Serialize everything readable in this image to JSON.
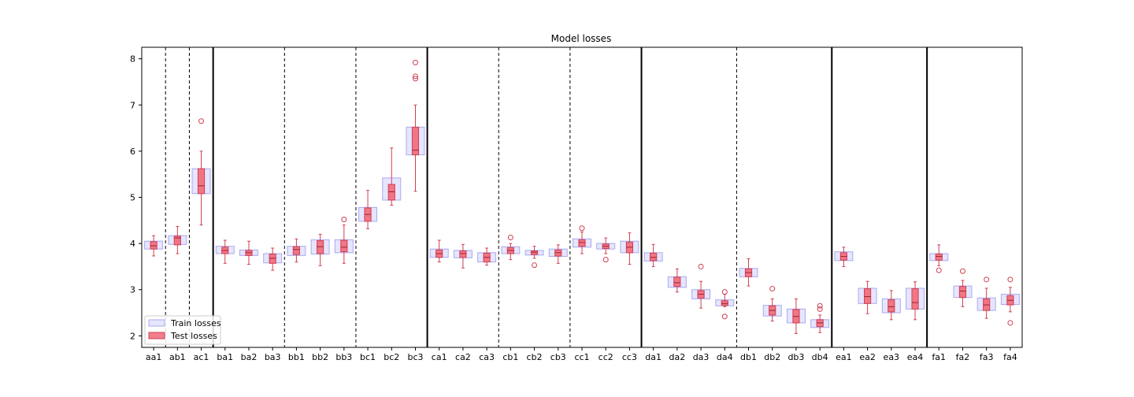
{
  "chart_data": {
    "type": "box",
    "title": "Model losses",
    "xlabel": "",
    "ylabel": "",
    "ylim": [
      1.75,
      8.25
    ],
    "yticks": [
      2,
      3,
      4,
      5,
      6,
      7,
      8
    ],
    "grid": false,
    "legend_position": "lower-left",
    "categories": [
      "aa1",
      "ab1",
      "ac1",
      "ba1",
      "ba2",
      "ba3",
      "bb1",
      "bb2",
      "bb3",
      "bc1",
      "bc2",
      "bc3",
      "ca1",
      "ca2",
      "ca3",
      "cb1",
      "cb2",
      "cb3",
      "cc1",
      "cc2",
      "cc3",
      "da1",
      "da2",
      "da3",
      "da4",
      "db1",
      "db2",
      "db3",
      "db4",
      "ea1",
      "ea2",
      "ea3",
      "ea4",
      "fa1",
      "fa2",
      "fa3",
      "fa4"
    ],
    "separators_solid_after": [
      "ac1",
      "bc3",
      "cc3",
      "db4",
      "ea4"
    ],
    "separators_dashed_after": [
      "aa1",
      "ab1",
      "ba3",
      "bb3",
      "ca3",
      "cb3",
      "da4"
    ],
    "series": [
      {
        "name": "Train losses",
        "color": "#ccccff",
        "edge_color": "#aaaaee",
        "boxes": [
          {
            "q1": 3.88,
            "q3": 4.05
          },
          {
            "q1": 3.98,
            "q3": 4.17
          },
          {
            "q1": 5.08,
            "q3": 5.62
          },
          {
            "q1": 3.78,
            "q3": 3.94
          },
          {
            "q1": 3.74,
            "q3": 3.86
          },
          {
            "q1": 3.58,
            "q3": 3.78
          },
          {
            "q1": 3.74,
            "q3": 3.94
          },
          {
            "q1": 3.77,
            "q3": 4.08
          },
          {
            "q1": 3.8,
            "q3": 4.08
          },
          {
            "q1": 4.48,
            "q3": 4.78
          },
          {
            "q1": 4.94,
            "q3": 5.42
          },
          {
            "q1": 5.92,
            "q3": 6.52
          },
          {
            "q1": 3.7,
            "q3": 3.88
          },
          {
            "q1": 3.69,
            "q3": 3.85
          },
          {
            "q1": 3.6,
            "q3": 3.8
          },
          {
            "q1": 3.78,
            "q3": 3.93
          },
          {
            "q1": 3.75,
            "q3": 3.85
          },
          {
            "q1": 3.72,
            "q3": 3.88
          },
          {
            "q1": 3.92,
            "q3": 4.1
          },
          {
            "q1": 3.88,
            "q3": 4.0
          },
          {
            "q1": 3.8,
            "q3": 4.05
          },
          {
            "q1": 3.62,
            "q3": 3.8
          },
          {
            "q1": 3.05,
            "q3": 3.28
          },
          {
            "q1": 2.8,
            "q3": 3.0
          },
          {
            "q1": 2.65,
            "q3": 2.78
          },
          {
            "q1": 3.28,
            "q3": 3.46
          },
          {
            "q1": 2.43,
            "q3": 2.66
          },
          {
            "q1": 2.28,
            "q3": 2.58
          },
          {
            "q1": 2.18,
            "q3": 2.35
          },
          {
            "q1": 3.63,
            "q3": 3.82
          },
          {
            "q1": 2.7,
            "q3": 3.03
          },
          {
            "q1": 2.5,
            "q3": 2.8
          },
          {
            "q1": 2.58,
            "q3": 3.03
          },
          {
            "q1": 3.63,
            "q3": 3.78
          },
          {
            "q1": 2.83,
            "q3": 3.08
          },
          {
            "q1": 2.55,
            "q3": 2.82
          },
          {
            "q1": 2.68,
            "q3": 2.9
          }
        ]
      },
      {
        "name": "Test losses",
        "color": "#f07080",
        "edge_color": "#d04050",
        "boxes": [
          {
            "whislo": 3.73,
            "q1": 3.88,
            "med": 3.95,
            "q3": 4.04,
            "whishi": 4.17,
            "fliers": []
          },
          {
            "whislo": 3.78,
            "q1": 3.97,
            "med": 4.12,
            "q3": 4.16,
            "whishi": 4.37,
            "fliers": []
          },
          {
            "whislo": 4.4,
            "q1": 5.08,
            "med": 5.25,
            "q3": 5.62,
            "whishi": 6.0,
            "fliers": [
              6.65
            ]
          },
          {
            "whislo": 3.57,
            "q1": 3.78,
            "med": 3.85,
            "q3": 3.92,
            "whishi": 4.07,
            "fliers": []
          },
          {
            "whislo": 3.55,
            "q1": 3.74,
            "med": 3.8,
            "q3": 3.85,
            "whishi": 4.05,
            "fliers": []
          },
          {
            "whislo": 3.42,
            "q1": 3.57,
            "med": 3.68,
            "q3": 3.77,
            "whishi": 3.9,
            "fliers": []
          },
          {
            "whislo": 3.6,
            "q1": 3.76,
            "med": 3.87,
            "q3": 3.93,
            "whishi": 4.1,
            "fliers": []
          },
          {
            "whislo": 3.52,
            "q1": 3.78,
            "med": 3.93,
            "q3": 4.06,
            "whishi": 4.2,
            "fliers": []
          },
          {
            "whislo": 3.57,
            "q1": 3.82,
            "med": 3.92,
            "q3": 4.07,
            "whishi": 4.4,
            "fliers": [
              4.52
            ]
          },
          {
            "whislo": 4.32,
            "q1": 4.48,
            "med": 4.63,
            "q3": 4.77,
            "whishi": 5.15,
            "fliers": []
          },
          {
            "whislo": 4.83,
            "q1": 4.94,
            "med": 5.12,
            "q3": 5.28,
            "whishi": 6.07,
            "fliers": []
          },
          {
            "whislo": 5.13,
            "q1": 5.92,
            "med": 6.02,
            "q3": 6.52,
            "whishi": 7.0,
            "fliers": [
              7.57,
              7.62,
              7.92
            ]
          },
          {
            "whislo": 3.6,
            "q1": 3.7,
            "med": 3.78,
            "q3": 3.86,
            "whishi": 4.07,
            "fliers": []
          },
          {
            "whislo": 3.47,
            "q1": 3.7,
            "med": 3.78,
            "q3": 3.84,
            "whishi": 3.98,
            "fliers": []
          },
          {
            "whislo": 3.53,
            "q1": 3.6,
            "med": 3.7,
            "q3": 3.79,
            "whishi": 3.9,
            "fliers": []
          },
          {
            "whislo": 3.65,
            "q1": 3.78,
            "med": 3.85,
            "q3": 3.91,
            "whishi": 4.0,
            "fliers": [
              4.13
            ]
          },
          {
            "whislo": 3.68,
            "q1": 3.76,
            "med": 3.81,
            "q3": 3.84,
            "whishi": 3.94,
            "fliers": [
              3.53
            ]
          },
          {
            "whislo": 3.57,
            "q1": 3.73,
            "med": 3.8,
            "q3": 3.86,
            "whishi": 3.97,
            "fliers": []
          },
          {
            "whislo": 3.78,
            "q1": 3.94,
            "med": 4.02,
            "q3": 4.08,
            "whishi": 4.25,
            "fliers": [
              4.33
            ]
          },
          {
            "whislo": 3.78,
            "q1": 3.89,
            "med": 3.94,
            "q3": 3.99,
            "whishi": 4.12,
            "fliers": [
              3.65
            ]
          },
          {
            "whislo": 3.55,
            "q1": 3.8,
            "med": 3.92,
            "q3": 4.03,
            "whishi": 4.23,
            "fliers": []
          },
          {
            "whislo": 3.5,
            "q1": 3.63,
            "med": 3.7,
            "q3": 3.79,
            "whishi": 3.98,
            "fliers": []
          },
          {
            "whislo": 2.95,
            "q1": 3.07,
            "med": 3.15,
            "q3": 3.27,
            "whishi": 3.45,
            "fliers": []
          },
          {
            "whislo": 2.6,
            "q1": 2.82,
            "med": 2.9,
            "q3": 2.98,
            "whishi": 3.18,
            "fliers": [
              3.5
            ]
          },
          {
            "whislo": 2.63,
            "q1": 2.66,
            "med": 2.7,
            "q3": 2.76,
            "whishi": 2.9,
            "fliers": [
              2.95,
              2.42
            ]
          },
          {
            "whislo": 3.08,
            "q1": 3.28,
            "med": 3.37,
            "q3": 3.45,
            "whishi": 3.67,
            "fliers": []
          },
          {
            "whislo": 2.32,
            "q1": 2.45,
            "med": 2.55,
            "q3": 2.65,
            "whishi": 2.8,
            "fliers": [
              3.02
            ]
          },
          {
            "whislo": 2.05,
            "q1": 2.28,
            "med": 2.42,
            "q3": 2.57,
            "whishi": 2.8,
            "fliers": []
          },
          {
            "whislo": 2.07,
            "q1": 2.2,
            "med": 2.28,
            "q3": 2.35,
            "whishi": 2.45,
            "fliers": [
              2.65,
              2.58
            ]
          },
          {
            "whislo": 3.5,
            "q1": 3.64,
            "med": 3.72,
            "q3": 3.8,
            "whishi": 3.92,
            "fliers": []
          },
          {
            "whislo": 2.48,
            "q1": 2.7,
            "med": 2.85,
            "q3": 3.02,
            "whishi": 3.18,
            "fliers": []
          },
          {
            "whislo": 2.35,
            "q1": 2.52,
            "med": 2.63,
            "q3": 2.78,
            "whishi": 2.98,
            "fliers": []
          },
          {
            "whislo": 2.35,
            "q1": 2.58,
            "med": 2.72,
            "q3": 3.02,
            "whishi": 3.17,
            "fliers": []
          },
          {
            "whislo": 3.52,
            "q1": 3.64,
            "med": 3.72,
            "q3": 3.77,
            "whishi": 3.97,
            "fliers": [
              3.42
            ]
          },
          {
            "whislo": 2.63,
            "q1": 2.83,
            "med": 2.97,
            "q3": 3.07,
            "whishi": 3.2,
            "fliers": [
              3.4
            ]
          },
          {
            "whislo": 2.38,
            "q1": 2.55,
            "med": 2.67,
            "q3": 2.8,
            "whishi": 3.03,
            "fliers": [
              3.22
            ]
          },
          {
            "whislo": 2.52,
            "q1": 2.67,
            "med": 2.77,
            "q3": 2.87,
            "whishi": 3.05,
            "fliers": [
              2.28,
              3.22
            ]
          }
        ]
      }
    ]
  }
}
